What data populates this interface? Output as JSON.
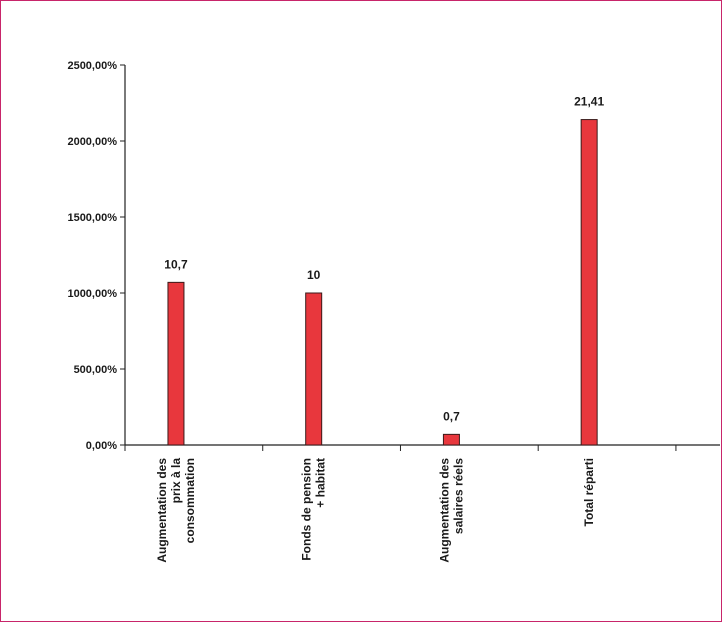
{
  "colors": {
    "bar": "#e8373d",
    "bar_outline": "#3a1a1a",
    "axis": "#222222",
    "frame": "#c8256a"
  },
  "chart_data": {
    "type": "bar",
    "title": "",
    "xlabel": "",
    "ylabel": "",
    "ylim": [
      0,
      2500
    ],
    "y_ticks": [
      0,
      500,
      1000,
      1500,
      2000,
      2500
    ],
    "y_tick_labels": [
      "0,00%",
      "500,00%",
      "1000,00%",
      "1500,00%",
      "2000,00%",
      "2500,00%"
    ],
    "grid": false,
    "legend": "none",
    "categories": [
      [
        "Augmentation des",
        "prix à la",
        "consommation"
      ],
      [
        "Fonds de pension",
        "+ habitat"
      ],
      [
        "Augmentation des",
        "salaires réels"
      ],
      [
        "Total réparti"
      ]
    ],
    "values": [
      1070,
      1000,
      70,
      2141
    ],
    "data_labels": [
      "10,7",
      "10",
      "0,7",
      "21,41"
    ]
  }
}
